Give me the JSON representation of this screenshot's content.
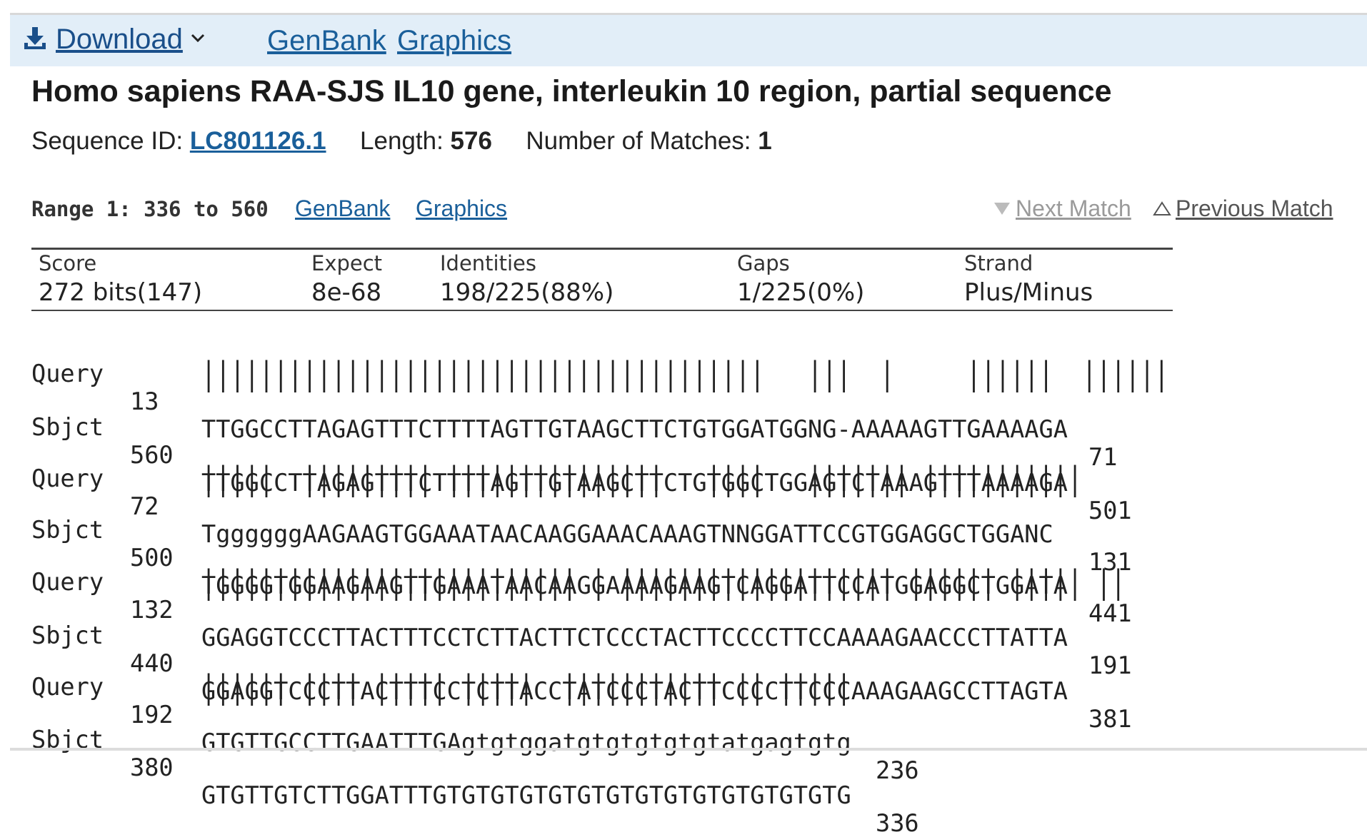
{
  "toolbar": {
    "download_label": "Download",
    "genbank_label": "GenBank",
    "graphics_label": "Graphics"
  },
  "record": {
    "title": "Homo sapiens RAA-SJS IL10 gene, interleukin 10 region, partial sequence",
    "sequence_id_label": "Sequence ID:",
    "sequence_id": "LC801126.1",
    "length_label": "Length:",
    "length": "576",
    "matches_label": "Number of Matches:",
    "matches": "1"
  },
  "range": {
    "label": "Range 1: 336 to 560",
    "genbank_label": "GenBank",
    "graphics_label": "Graphics",
    "next_match_label": "Next Match",
    "previous_match_label": "Previous Match"
  },
  "stats": {
    "score_label": "Score",
    "score": "272 bits(147)",
    "expect_label": "Expect",
    "expect": "8e-68",
    "identities_label": "Identities",
    "identities": "198/225(88%)",
    "gaps_label": "Gaps",
    "gaps": "1/225(0%)",
    "strand_label": "Strand",
    "strand": "Plus/Minus"
  },
  "alignment": [
    {
      "query_label": "Query",
      "query_start": "13",
      "query_seq": "TTGGCCTTAGAGTTTCTTTTAGTTGTAAGCTTCTGTGGATGGNG-AAAAAGTTGAAAAGA",
      "query_end": "71",
      "midline": "|||||||||||||||||||||||||||||||||||||||   |||  |     ||||||  ||||||",
      "sbjct_label": "Sbjct",
      "sbjct_start": "560",
      "sbjct_seq": "TTGGCCTTAGAGTTTCTTTTAGTTGTAAGCTTCTGTGGCTGGAGTCTAAAGTTTAAAAGA",
      "sbjct_end": "501"
    },
    {
      "query_label": "Query",
      "query_start": "72",
      "query_seq": "TggggggAAGAAGTGGAAATAACAAGGAAACAAAGTNNGGATTCCGTGGAGGCTGGANC",
      "query_end": "131",
      "midline": "|||||  ||||||||| |||||||||||||||   ||||   ||||||| |||||||||||",
      "sbjct_label": "Sbjct",
      "sbjct_start": "500",
      "sbjct_seq": "TGGGGTGGAAGAAGTTGAAATAACAAGGAAAAGAAGTCAGGATTCCATGGAGGCTGGATA",
      "sbjct_end": "441"
    },
    {
      "query_label": "Query",
      "query_start": "132",
      "query_seq": "GGAGGTCCCTTACTTTCCTCTTACTTCTCCCTACTTCCCCTTCCAAAAGAACCCTTATTA",
      "query_end": "191",
      "midline": "|||||||||||||||||||||||||| | ||||||||||||||||||| |||||| ||||| ||",
      "sbjct_label": "Sbjct",
      "sbjct_start": "440",
      "sbjct_seq": "GGAGGTCCCTTACTTTCCTCTTACCTATCCCTACTTCCCCTTCCCAAAGAAGCCTTAGTA",
      "sbjct_end": "381"
    },
    {
      "query_label": "Query",
      "query_start": "192",
      "query_seq": "GTGTTGCCTTGAATTTGAgtgtggatgtgtgtgtgtatgagtgtg",
      "query_end": "236",
      "midline": "|||||| |||| ||||| |||||  ||||||||||| || |||||",
      "sbjct_label": "Sbjct",
      "sbjct_start": "380",
      "sbjct_seq": "GTGTTGTCTTGGATTTGTGTGTGTGTGTGTGTGTGTGTGTGTGTG",
      "sbjct_end": "336"
    }
  ],
  "colors": {
    "link": "#1a5f9a",
    "toolbar_bg": "#e2eef8",
    "muted": "#9a9a9a"
  }
}
